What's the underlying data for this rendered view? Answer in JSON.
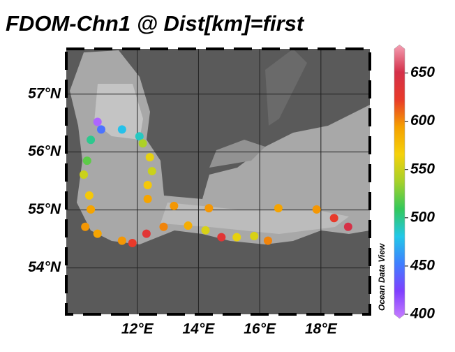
{
  "chart_data": {
    "type": "map",
    "title": "FDOM-Chn1 @ Dist[km]=first",
    "watermark": "Ocean Data View",
    "xlim": [
      9.68,
      19.6
    ],
    "ylim": [
      53.2,
      57.78
    ],
    "xticks": [
      {
        "value": 12,
        "label": "12°E"
      },
      {
        "value": 14,
        "label": "14°E"
      },
      {
        "value": 16,
        "label": "16°E"
      },
      {
        "value": 18,
        "label": "18°E"
      }
    ],
    "yticks": [
      {
        "value": 57,
        "label": "57°N"
      },
      {
        "value": 56,
        "label": "56°N"
      },
      {
        "value": 55,
        "label": "55°N"
      },
      {
        "value": 54,
        "label": "54°N"
      }
    ],
    "grid": true,
    "clim": [
      400,
      675
    ],
    "cticks": [
      400,
      450,
      500,
      550,
      600,
      650
    ],
    "colormap": [
      "#c77dff",
      "#7f3fff",
      "#3f7fff",
      "#22c8e8",
      "#33c85a",
      "#a6d12a",
      "#f5d10a",
      "#f5a000",
      "#e83a2a",
      "#d4304a",
      "#f5a0b4"
    ],
    "x": [
      10.7,
      10.82,
      11.5,
      12.07,
      12.18,
      12.41,
      12.48,
      12.34,
      12.34,
      13.2,
      14.34,
      16.61,
      17.86,
      18.43,
      18.89,
      10.48,
      10.36,
      10.25,
      10.43,
      10.48,
      10.3,
      10.7,
      11.5,
      11.84,
      12.3,
      12.86,
      13.66,
      14.23,
      14.75,
      15.25,
      15.82,
      16.27
    ],
    "y": [
      56.52,
      56.39,
      56.39,
      56.27,
      56.15,
      55.91,
      55.67,
      55.43,
      55.19,
      55.07,
      55.03,
      55.03,
      55.01,
      54.86,
      54.71,
      56.21,
      55.85,
      55.61,
      55.25,
      55.01,
      54.71,
      54.59,
      54.47,
      54.43,
      54.59,
      54.71,
      54.73,
      54.65,
      54.53,
      54.53,
      54.55,
      54.47
    ],
    "values": [
      410,
      450,
      480,
      490,
      540,
      560,
      550,
      570,
      590,
      595,
      595,
      590,
      595,
      620,
      645,
      500,
      520,
      550,
      570,
      590,
      595,
      590,
      595,
      620,
      630,
      600,
      585,
      555,
      630,
      560,
      555,
      600
    ]
  }
}
